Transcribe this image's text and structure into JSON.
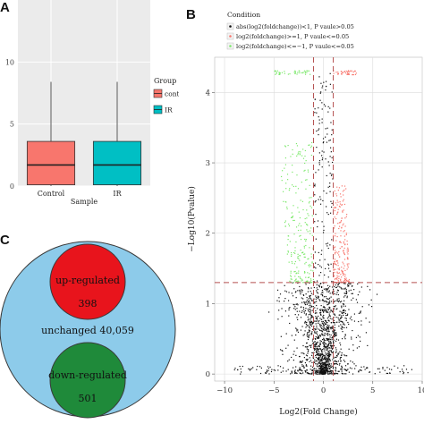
{
  "panels": {
    "a": "A",
    "b": "B",
    "c": "C"
  },
  "chart_data": [
    {
      "type": "box",
      "panel": "A",
      "xlabel": "Sample",
      "categories": [
        "Control",
        "IR"
      ],
      "ylim": [
        0,
        15
      ],
      "yticks": [
        0,
        5,
        10
      ],
      "boxes": [
        {
          "category": "Control",
          "min": 0,
          "q1": 0.1,
          "median": 1.7,
          "q3": 3.6,
          "max": 8.4,
          "color": "#F8766D"
        },
        {
          "category": "IR",
          "min": 0,
          "q1": 0.1,
          "median": 1.7,
          "q3": 3.6,
          "max": 8.4,
          "color": "#00BFC4"
        }
      ],
      "legend": {
        "title": "Group",
        "entries": [
          "control",
          "IR"
        ],
        "position": "right"
      }
    },
    {
      "type": "scatter",
      "panel": "B",
      "xlabel": "Log2(Fold Change)",
      "ylabel": "−Log10(Pvalue)",
      "xlim": [
        -11,
        10
      ],
      "ylim": [
        -0.1,
        4.5
      ],
      "xticks": [
        -10,
        -5,
        0,
        5,
        10
      ],
      "yticks": [
        0,
        1,
        2,
        3,
        4
      ],
      "thresholds": {
        "x": [
          -1,
          1
        ],
        "y": 1.3
      },
      "legend": {
        "title": "Condition",
        "position": "top",
        "entries": [
          {
            "label": "abs(log2(foldchange))<1, P vaule>0.05",
            "color": "#111111"
          },
          {
            "label": "log2(foldchange)>=1, P vaule<=0.05",
            "color": "#F8766D"
          },
          {
            "label": "log2(foldchange)<=−1, P vaule<=0.05",
            "color": "#7CE86B"
          }
        ]
      },
      "series": [
        {
          "color": "#111111",
          "x_range": [
            -9,
            9
          ],
          "y_range": [
            0,
            1.3
          ]
        },
        {
          "color": "#F8766D",
          "x_range": [
            1,
            4
          ],
          "y_range": [
            1.3,
            4.3
          ]
        },
        {
          "color": "#7CE86B",
          "x_range": [
            -5.5,
            -1
          ],
          "y_range": [
            1.3,
            4.3
          ]
        }
      ]
    },
    {
      "type": "venn",
      "panel": "C",
      "sets": [
        {
          "label": "up-regulated",
          "count": "398",
          "color": "#E8141C"
        },
        {
          "label": "unchanged",
          "count": "40,059",
          "color": "#8DCBEA"
        },
        {
          "label": "down-regulated",
          "count": "501",
          "color": "#1F8A3A"
        }
      ]
    }
  ]
}
